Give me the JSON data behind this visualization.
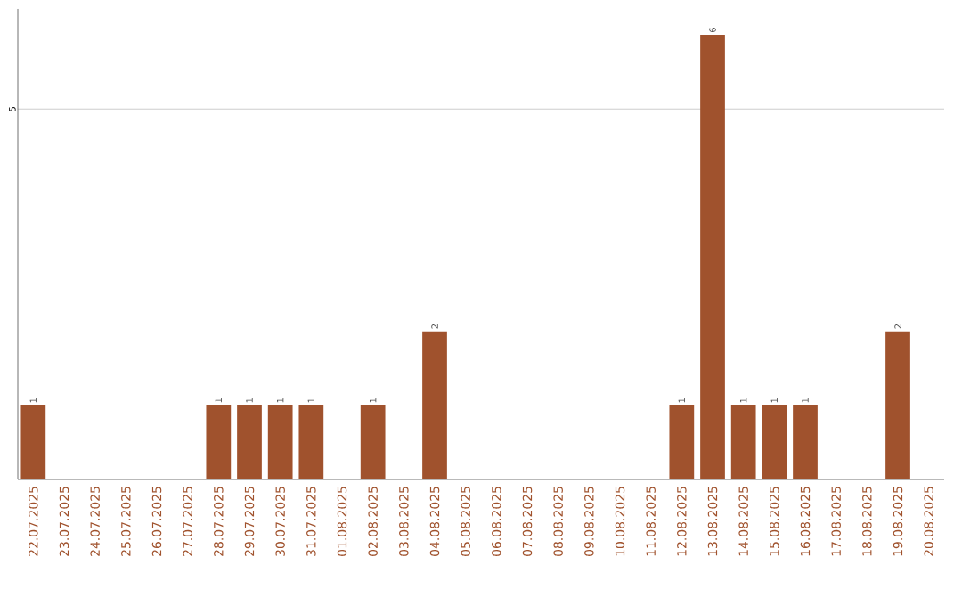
{
  "chart_data": {
    "type": "bar",
    "categories": [
      "22.07.2025",
      "23.07.2025",
      "24.07.2025",
      "25.07.2025",
      "26.07.2025",
      "27.07.2025",
      "28.07.2025",
      "29.07.2025",
      "30.07.2025",
      "31.07.2025",
      "01.08.2025",
      "02.08.2025",
      "03.08.2025",
      "04.08.2025",
      "05.08.2025",
      "06.08.2025",
      "07.08.2025",
      "08.08.2025",
      "09.08.2025",
      "10.08.2025",
      "11.08.2025",
      "12.08.2025",
      "13.08.2025",
      "14.08.2025",
      "15.08.2025",
      "16.08.2025",
      "17.08.2025",
      "18.08.2025",
      "19.08.2025",
      "20.08.2025"
    ],
    "values": [
      1,
      0,
      0,
      0,
      0,
      0,
      1,
      1,
      1,
      1,
      0,
      1,
      0,
      2,
      0,
      0,
      0,
      0,
      0,
      0,
      0,
      1,
      6,
      1,
      1,
      1,
      0,
      0,
      2,
      0
    ],
    "value_labels": [
      "1",
      null,
      null,
      null,
      null,
      null,
      "1",
      "1",
      "1",
      "1",
      null,
      "1",
      null,
      "2",
      null,
      null,
      null,
      null,
      null,
      null,
      null,
      "1",
      "6",
      "1",
      "1",
      "1",
      null,
      null,
      "2",
      null
    ],
    "color": "#a0522d",
    "ylim": [
      0,
      6.35
    ],
    "yticks": [
      5
    ],
    "grid": "y"
  }
}
